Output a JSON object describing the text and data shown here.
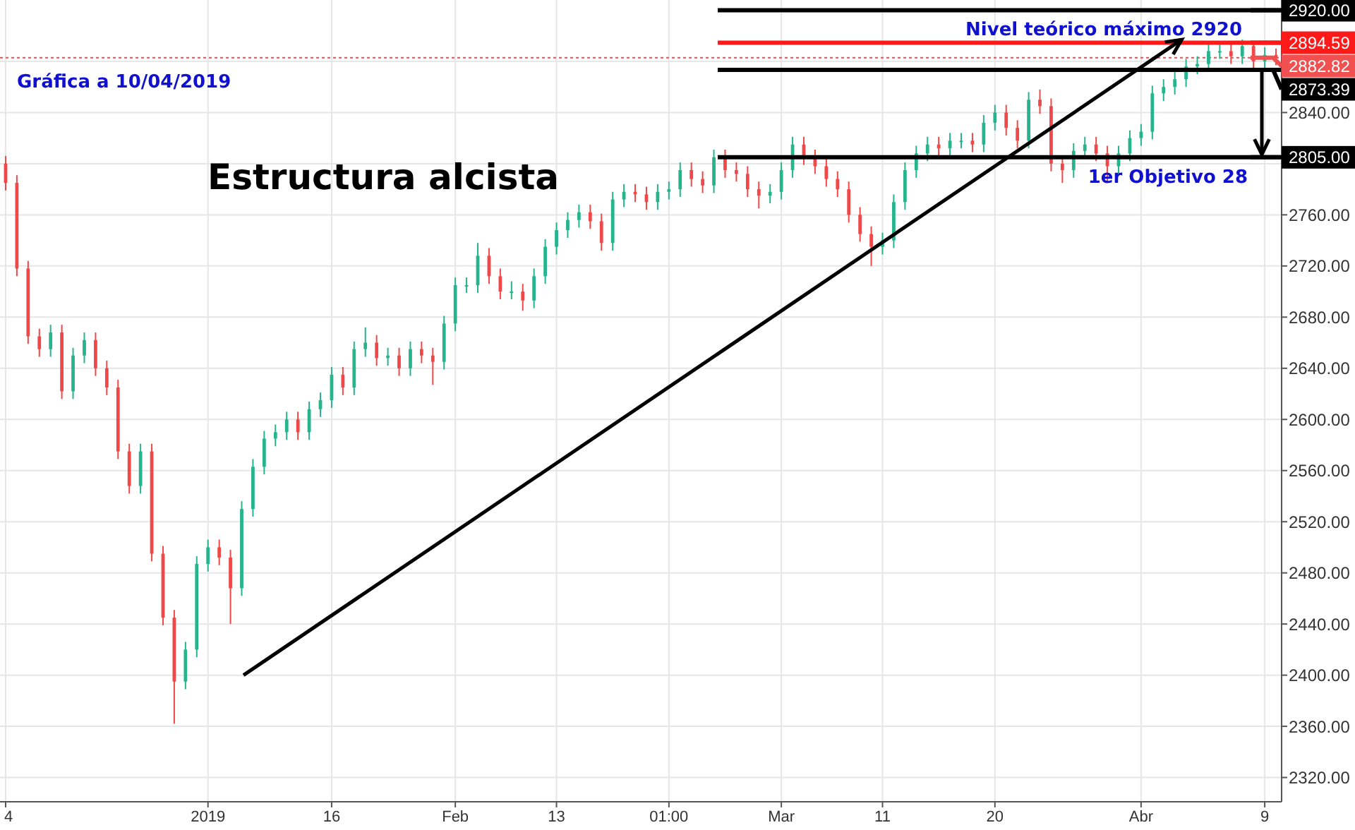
{
  "chart_data": {
    "type": "candlestick",
    "categories": [
      "4",
      null,
      null,
      null,
      null,
      null,
      null,
      null,
      null,
      null,
      null,
      null,
      null,
      null,
      null,
      null,
      null,
      null,
      "2019",
      null,
      null,
      null,
      null,
      null,
      null,
      null,
      null,
      null,
      null,
      "16",
      null,
      null,
      null,
      null,
      null,
      null,
      null,
      null,
      null,
      null,
      "Feb",
      null,
      null,
      null,
      null,
      null,
      null,
      null,
      null,
      "13",
      null,
      null,
      null,
      null,
      null,
      null,
      null,
      null,
      null,
      "01:00",
      null,
      null,
      null,
      null,
      null,
      null,
      null,
      null,
      null,
      "Mar",
      null,
      null,
      null,
      null,
      null,
      null,
      null,
      null,
      "11",
      null,
      null,
      null,
      null,
      null,
      null,
      null,
      null,
      null,
      "20",
      null,
      null,
      null,
      null,
      null,
      null,
      null,
      null,
      null,
      null,
      null,
      null,
      "Abr",
      null,
      null,
      null,
      null,
      null,
      null,
      null,
      null,
      null,
      null,
      "9",
      null
    ],
    "ohlc": [
      [
        2800,
        2806,
        2779,
        2785
      ],
      [
        2785,
        2791,
        2712,
        2718
      ],
      [
        2718,
        2724,
        2659,
        2665
      ],
      [
        2665,
        2671,
        2649,
        2655
      ],
      [
        2655,
        2674,
        2649,
        2668
      ],
      [
        2668,
        2674,
        2616,
        2622
      ],
      [
        2622,
        2656,
        2616,
        2650
      ],
      [
        2650,
        2668,
        2644,
        2662
      ],
      [
        2662,
        2668,
        2634,
        2640
      ],
      [
        2640,
        2646,
        2619,
        2625
      ],
      [
        2625,
        2631,
        2569,
        2575
      ],
      [
        2575,
        2581,
        2542,
        2548
      ],
      [
        2548,
        2581,
        2542,
        2575
      ],
      [
        2575,
        2581,
        2489,
        2495
      ],
      [
        2495,
        2501,
        2439,
        2445
      ],
      [
        2445,
        2451,
        2362,
        2395
      ],
      [
        2395,
        2426,
        2389,
        2420
      ],
      [
        2420,
        2493,
        2414,
        2487
      ],
      [
        2487,
        2506,
        2481,
        2500
      ],
      [
        2500,
        2506,
        2486,
        2492
      ],
      [
        2492,
        2498,
        2440,
        2468
      ],
      [
        2468,
        2536,
        2462,
        2530
      ],
      [
        2530,
        2569,
        2524,
        2563
      ],
      [
        2563,
        2591,
        2557,
        2585
      ],
      [
        2585,
        2596,
        2579,
        2590
      ],
      [
        2590,
        2606,
        2584,
        2600
      ],
      [
        2600,
        2606,
        2584,
        2590
      ],
      [
        2590,
        2614,
        2584,
        2608
      ],
      [
        2608,
        2621,
        2602,
        2615
      ],
      [
        2615,
        2641,
        2609,
        2635
      ],
      [
        2635,
        2641,
        2619,
        2625
      ],
      [
        2625,
        2661,
        2619,
        2655
      ],
      [
        2655,
        2672,
        2649,
        2660
      ],
      [
        2660,
        2666,
        2642,
        2648
      ],
      [
        2648,
        2656,
        2642,
        2650
      ],
      [
        2650,
        2656,
        2634,
        2640
      ],
      [
        2640,
        2661,
        2634,
        2655
      ],
      [
        2655,
        2661,
        2644,
        2650
      ],
      [
        2650,
        2656,
        2627,
        2645
      ],
      [
        2645,
        2681,
        2639,
        2675
      ],
      [
        2675,
        2711,
        2669,
        2705
      ],
      [
        2705,
        2711,
        2699,
        2705
      ],
      [
        2705,
        2738,
        2699,
        2728
      ],
      [
        2728,
        2734,
        2706,
        2712
      ],
      [
        2712,
        2718,
        2694,
        2700
      ],
      [
        2700,
        2708,
        2694,
        2700
      ],
      [
        2700,
        2706,
        2685,
        2693
      ],
      [
        2693,
        2718,
        2687,
        2712
      ],
      [
        2712,
        2741,
        2706,
        2735
      ],
      [
        2735,
        2754,
        2729,
        2748
      ],
      [
        2748,
        2762,
        2742,
        2756
      ],
      [
        2756,
        2768,
        2750,
        2762
      ],
      [
        2762,
        2768,
        2749,
        2755
      ],
      [
        2755,
        2761,
        2732,
        2738
      ],
      [
        2738,
        2778,
        2732,
        2772
      ],
      [
        2772,
        2784,
        2766,
        2778
      ],
      [
        2778,
        2784,
        2770,
        2776
      ],
      [
        2776,
        2782,
        2764,
        2770
      ],
      [
        2770,
        2784,
        2764,
        2778
      ],
      [
        2778,
        2786,
        2772,
        2780
      ],
      [
        2780,
        2801,
        2774,
        2795
      ],
      [
        2795,
        2801,
        2782,
        2788
      ],
      [
        2788,
        2794,
        2777,
        2783
      ],
      [
        2783,
        2811,
        2777,
        2805
      ],
      [
        2805,
        2811,
        2789,
        2795
      ],
      [
        2795,
        2801,
        2786,
        2792
      ],
      [
        2792,
        2798,
        2774,
        2780
      ],
      [
        2780,
        2786,
        2765,
        2775
      ],
      [
        2775,
        2784,
        2769,
        2778
      ],
      [
        2778,
        2801,
        2772,
        2795
      ],
      [
        2795,
        2821,
        2789,
        2815
      ],
      [
        2815,
        2821,
        2799,
        2805
      ],
      [
        2805,
        2811,
        2792,
        2798
      ],
      [
        2798,
        2804,
        2782,
        2788
      ],
      [
        2788,
        2794,
        2774,
        2780
      ],
      [
        2780,
        2786,
        2754,
        2760
      ],
      [
        2760,
        2766,
        2739,
        2745
      ],
      [
        2745,
        2751,
        2720,
        2735
      ],
      [
        2735,
        2746,
        2729,
        2740
      ],
      [
        2740,
        2776,
        2734,
        2770
      ],
      [
        2770,
        2801,
        2764,
        2795
      ],
      [
        2795,
        2814,
        2789,
        2808
      ],
      [
        2808,
        2821,
        2802,
        2815
      ],
      [
        2815,
        2821,
        2806,
        2812
      ],
      [
        2812,
        2824,
        2806,
        2818
      ],
      [
        2818,
        2824,
        2812,
        2818
      ],
      [
        2818,
        2824,
        2809,
        2815
      ],
      [
        2815,
        2838,
        2809,
        2832
      ],
      [
        2832,
        2846,
        2826,
        2840
      ],
      [
        2840,
        2846,
        2822,
        2828
      ],
      [
        2828,
        2834,
        2812,
        2818
      ],
      [
        2818,
        2856,
        2812,
        2850
      ],
      [
        2850,
        2858,
        2839,
        2845
      ],
      [
        2845,
        2851,
        2794,
        2800
      ],
      [
        2800,
        2806,
        2785,
        2795
      ],
      [
        2795,
        2816,
        2789,
        2810
      ],
      [
        2810,
        2821,
        2804,
        2815
      ],
      [
        2815,
        2821,
        2802,
        2808
      ],
      [
        2808,
        2814,
        2786,
        2798
      ],
      [
        2798,
        2814,
        2792,
        2808
      ],
      [
        2808,
        2826,
        2802,
        2820
      ],
      [
        2820,
        2831,
        2814,
        2825
      ],
      [
        2825,
        2861,
        2819,
        2855
      ],
      [
        2855,
        2866,
        2849,
        2860
      ],
      [
        2860,
        2872,
        2854,
        2866
      ],
      [
        2866,
        2882,
        2860,
        2876
      ],
      [
        2876,
        2884,
        2870,
        2878
      ],
      [
        2878,
        2894,
        2872,
        2888
      ],
      [
        2888,
        2894,
        2882,
        2888
      ],
      [
        2888,
        2894,
        2878,
        2884
      ],
      [
        2884,
        2897,
        2878,
        2892
      ],
      [
        2892,
        2896,
        2874,
        2880
      ],
      [
        2880,
        2891,
        2874,
        2885
      ],
      [
        2885,
        2890,
        2877,
        2883
      ]
    ],
    "colors": [
      "#f04848",
      "#f04848",
      "#f04848",
      "#f04848",
      "#26b48c",
      "#f04848",
      "#26b48c",
      "#26b48c",
      "#f04848",
      "#f04848",
      "#f04848",
      "#f04848",
      "#26b48c",
      "#f04848",
      "#f04848",
      "#f04848",
      "#26b48c",
      "#26b48c",
      "#26b48c",
      "#f04848",
      "#f04848",
      "#26b48c",
      "#26b48c",
      "#26b48c",
      "#26b48c",
      "#26b48c",
      "#f04848",
      "#26b48c",
      "#26b48c",
      "#26b48c",
      "#f04848",
      "#26b48c",
      "#26b48c",
      "#f04848",
      "#26b48c",
      "#f04848",
      "#26b48c",
      "#f04848",
      "#f04848",
      "#26b48c",
      "#26b48c",
      "#26b48c",
      "#26b48c",
      "#f04848",
      "#f04848",
      "#26b48c",
      "#f04848",
      "#26b48c",
      "#26b48c",
      "#26b48c",
      "#26b48c",
      "#26b48c",
      "#f04848",
      "#f04848",
      "#26b48c",
      "#26b48c",
      "#f04848",
      "#f04848",
      "#26b48c",
      "#26b48c",
      "#26b48c",
      "#f04848",
      "#f04848",
      "#26b48c",
      "#f04848",
      "#f04848",
      "#f04848",
      "#f04848",
      "#26b48c",
      "#26b48c",
      "#26b48c",
      "#f04848",
      "#f04848",
      "#f04848",
      "#f04848",
      "#f04848",
      "#f04848",
      "#f04848",
      "#26b48c",
      "#26b48c",
      "#26b48c",
      "#26b48c",
      "#26b48c",
      "#f04848",
      "#26b48c",
      "#26b48c",
      "#f04848",
      "#26b48c",
      "#26b48c",
      "#f04848",
      "#f04848",
      "#26b48c",
      "#f04848",
      "#f04848",
      "#f04848",
      "#26b48c",
      "#26b48c",
      "#f04848",
      "#f04848",
      "#26b48c",
      "#26b48c",
      "#26b48c",
      "#26b48c",
      "#26b48c",
      "#26b48c",
      "#26b48c",
      "#26b48c",
      "#26b48c",
      "#26b48c",
      "#f04848",
      "#26b48c",
      "#f04848",
      "#26b48c",
      "#f04848"
    ],
    "ylim": [
      2301,
      2928
    ],
    "yticks": [
      {
        "value": 2320,
        "label": "2320.00"
      },
      {
        "value": 2360,
        "label": "2360.00"
      },
      {
        "value": 2400,
        "label": "2400.00"
      },
      {
        "value": 2440,
        "label": "2440.00"
      },
      {
        "value": 2480,
        "label": "2480.00"
      },
      {
        "value": 2520,
        "label": "2520.00"
      },
      {
        "value": 2560,
        "label": "2560.00"
      },
      {
        "value": 2600,
        "label": "2600.00"
      },
      {
        "value": 2640,
        "label": "2640.00"
      },
      {
        "value": 2680,
        "label": "2680.00"
      },
      {
        "value": 2720,
        "label": "2720.00"
      },
      {
        "value": 2760,
        "label": "2760.00"
      },
      {
        "value": 2800,
        "label": null
      },
      {
        "value": 2840,
        "label": "2840.00"
      },
      {
        "value": 2880,
        "label": null
      }
    ],
    "grid": true,
    "ref_lines": [
      {
        "axis": "y",
        "value": 2920,
        "label": "2920.00",
        "color": "#000000"
      },
      {
        "axis": "y",
        "value": 2894.59,
        "label": "2894.59",
        "color": "#ff1a1a"
      },
      {
        "axis": "y",
        "value": 2882.82,
        "label": "2882.82",
        "color": "#f05050",
        "line_style": "dotted"
      },
      {
        "axis": "y",
        "value": 2873.39,
        "label": "2873.39",
        "color": "#000000"
      },
      {
        "axis": "y",
        "value": 2805,
        "label": "2805.00",
        "color": "#000000"
      }
    ],
    "annotations": [
      "Gráfica a 10/04/2019",
      "Estructura alcista",
      {
        "text": "Nivel teórico máximo 2920",
        "y": 2920
      },
      {
        "text": "1er Objetivo 28",
        "y": 2805
      }
    ]
  }
}
